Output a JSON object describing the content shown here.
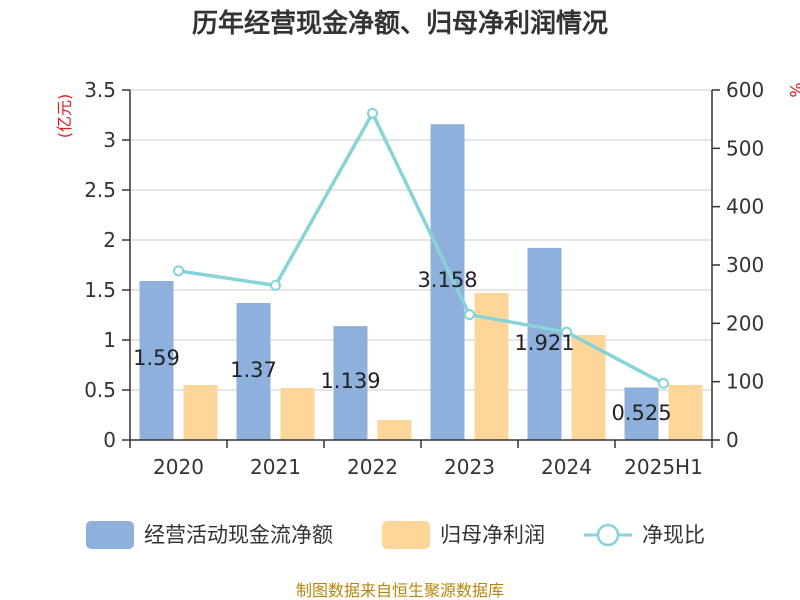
{
  "title": "历年经营现金净额、归母净利润情况",
  "source": "制图数据来自恒生聚源数据库",
  "colors": {
    "cash_flow": "#8eb0dc",
    "net_profit": "#fed69a",
    "ratio": "#88d3d8"
  },
  "chart_data": {
    "type": "bar",
    "categories": [
      "2020",
      "2021",
      "2022",
      "2023",
      "2024",
      "2025H1"
    ],
    "y_left_unit": "(亿元)",
    "y_right_unit": "%",
    "y_left_range": [
      0,
      3.5
    ],
    "y_left_ticks": [
      "0",
      "0.5",
      "1",
      "1.5",
      "2",
      "2.5",
      "3",
      "3.5"
    ],
    "y_right_range": [
      0,
      600
    ],
    "y_right_ticks": [
      "0",
      "100",
      "200",
      "300",
      "400",
      "500",
      "600"
    ],
    "grid": true,
    "legend_position": "bottom",
    "series": [
      {
        "name": "经营活动现金流净额",
        "type": "bar",
        "axis": "left",
        "values": [
          1.59,
          1.37,
          1.139,
          3.158,
          1.921,
          0.525
        ],
        "labels": [
          "1.59",
          "1.37",
          "1.139",
          "3.158",
          "1.921",
          "0.525"
        ]
      },
      {
        "name": "归母净利润",
        "type": "bar",
        "axis": "left",
        "values": [
          0.55,
          0.52,
          0.2,
          1.47,
          1.05,
          0.55
        ]
      },
      {
        "name": "净现比",
        "type": "line",
        "axis": "right",
        "values": [
          290,
          265,
          560,
          215,
          185,
          97
        ]
      }
    ]
  }
}
